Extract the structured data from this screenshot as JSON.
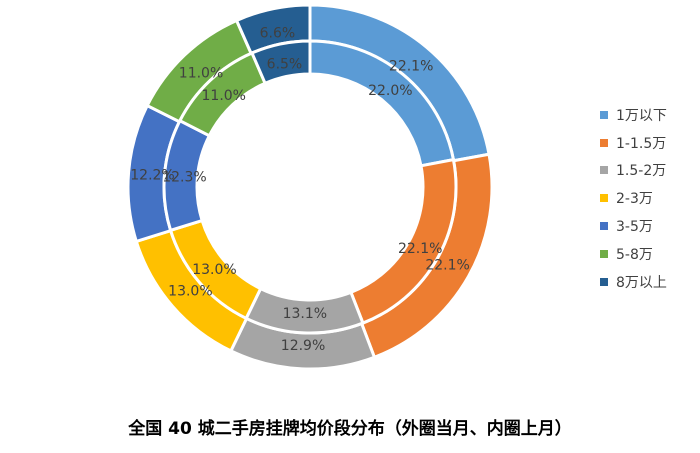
{
  "caption": "全国 40 城二手房挂牌均价段分布（外圈当月、内圈上月）",
  "chart_data": {
    "type": "pie",
    "categories": [
      "1万以下",
      "1-1.5万",
      "1.5-2万",
      "2-3万",
      "3-5万",
      "5-8万",
      "8万以上"
    ],
    "colors": [
      "#5B9BD5",
      "#ED7D31",
      "#A5A5A5",
      "#FFC000",
      "#4472C4",
      "#70AD47",
      "#255E91"
    ],
    "legend_position": "right",
    "series": [
      {
        "name": "外圈当月",
        "values": [
          22.1,
          22.1,
          12.9,
          13.0,
          12.2,
          11.0,
          6.6
        ],
        "labels": [
          "22.1%",
          "22.1%",
          "12.9%",
          "13.0%",
          "12.2%",
          "11.0%",
          "6.6%"
        ]
      },
      {
        "name": "内圈上月",
        "values": [
          22.0,
          22.1,
          13.1,
          13.0,
          12.3,
          11.0,
          6.5
        ],
        "labels": [
          "22.0%",
          "22.1%",
          "13.1%",
          "13.0%",
          "12.3%",
          "11.0%",
          "6.5%"
        ]
      }
    ]
  }
}
